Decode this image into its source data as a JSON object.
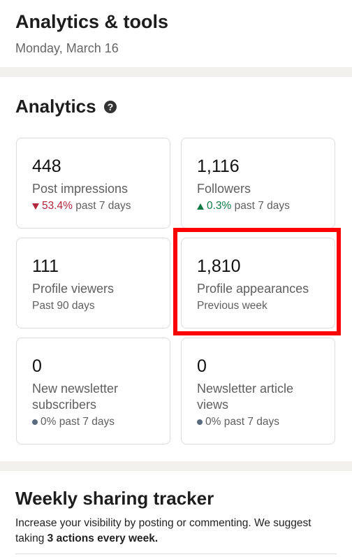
{
  "header": {
    "title": "Analytics & tools",
    "date": "Monday, March 16"
  },
  "analytics": {
    "title": "Analytics",
    "cards": [
      {
        "value": "448",
        "label": "Post impressions",
        "change": "53.4%",
        "period": "past 7 days"
      },
      {
        "value": "1,116",
        "label": "Followers",
        "change": "0.3%",
        "period": "past 7 days"
      },
      {
        "value": "111",
        "label": "Profile viewers",
        "period": "Past 90 days"
      },
      {
        "value": "1,810",
        "label": "Profile appearances",
        "period": "Previous week"
      },
      {
        "value": "0",
        "label": "New newsletter subscribers",
        "change": "0%",
        "period": "past 7 days"
      },
      {
        "value": "0",
        "label": "Newsletter article views",
        "change": "0%",
        "period": "past 7 days"
      }
    ]
  },
  "tracker": {
    "title": "Weekly sharing tracker",
    "text": "Increase your visibility by posting or commenting. We suggest taking ",
    "bold": "3 actions every week."
  }
}
